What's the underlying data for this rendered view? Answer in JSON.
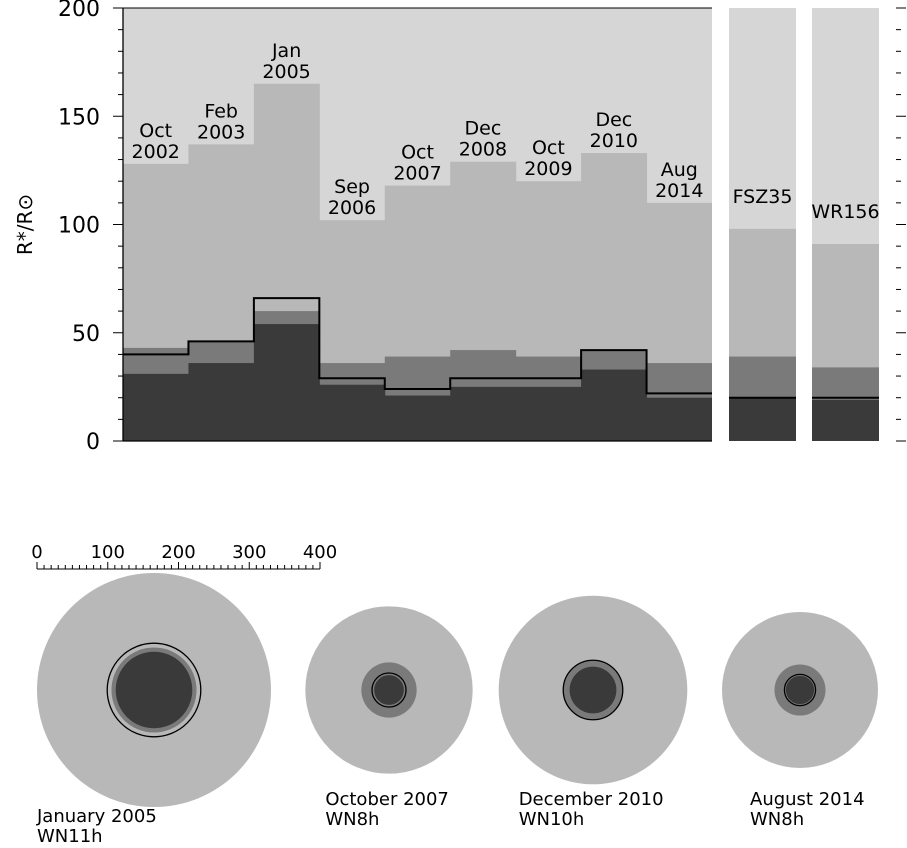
{
  "chart_data": [
    {
      "type": "bar",
      "ylabel": "R*/R⊙",
      "ylim": [
        0,
        200
      ],
      "yticks": [
        0,
        50,
        100,
        150,
        200
      ],
      "categories": [
        "Oct 2002",
        "Feb 2003",
        "Jan 2005",
        "Sep 2006",
        "Oct 2007",
        "Dec 2008",
        "Oct 2009",
        "Dec 2010",
        "Aug 2014",
        "FSZ35",
        "WR156"
      ],
      "labels": [
        [
          "Oct",
          "2002"
        ],
        [
          "Feb",
          "2003"
        ],
        [
          "Jan",
          "2005"
        ],
        [
          "Sep",
          "2006"
        ],
        [
          "Oct",
          "2007"
        ],
        [
          "Dec",
          "2008"
        ],
        [
          "Oct",
          "2009"
        ],
        [
          "Dec",
          "2010"
        ],
        [
          "Aug",
          "2014"
        ],
        [
          "FSZ35"
        ],
        [
          "WR156"
        ]
      ],
      "series": [
        {
          "values": [
            128,
            137,
            165,
            102,
            118,
            129,
            120,
            133,
            110,
            98,
            91
          ],
          "color": "#b8b8b8"
        },
        {
          "values": [
            43,
            46,
            60,
            36,
            39,
            42,
            39,
            42,
            36,
            39,
            34
          ],
          "color": "#7a7a7a"
        },
        {
          "values": [
            31,
            36,
            54,
            26,
            21,
            25,
            25,
            33,
            20,
            20,
            19
          ],
          "color": "#3a3a3a"
        },
        {
          "values": [
            40,
            46,
            66,
            29,
            24,
            29,
            29,
            42,
            22,
            20,
            20
          ],
          "color": "#000000",
          "style": "step-line"
        }
      ],
      "colors": {
        "background": "#d6d6d6",
        "separator": "#ffffff"
      }
    },
    {
      "type": "nested-circles",
      "scale": {
        "ticks": [
          0,
          100,
          200,
          300,
          400
        ],
        "max": 400
      },
      "items": [
        {
          "caption": "January 2005",
          "subtype": "WN11h",
          "radii": [
            165,
            60,
            54,
            66
          ]
        },
        {
          "caption": "October 2007",
          "subtype": "WN8h",
          "radii": [
            118,
            39,
            21,
            24
          ]
        },
        {
          "caption": "December 2010",
          "subtype": "WN10h",
          "radii": [
            133,
            42,
            33,
            42
          ]
        },
        {
          "caption": "August 2014",
          "subtype": "WN8h",
          "radii": [
            110,
            36,
            20,
            22
          ]
        }
      ],
      "colors": [
        "#b8b8b8",
        "#7a7a7a",
        "#3a3a3a",
        "#000000"
      ]
    }
  ]
}
